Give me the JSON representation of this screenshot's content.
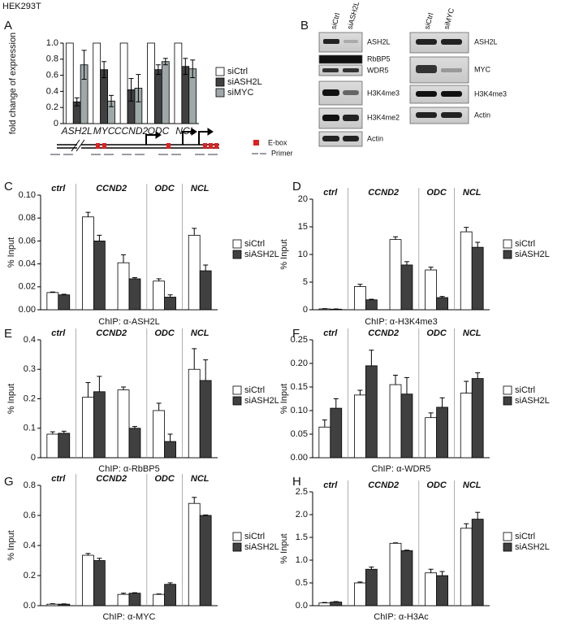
{
  "header": {
    "cell_line": "HEK293T"
  },
  "panel_labels": [
    "A",
    "B",
    "C",
    "D",
    "E",
    "F",
    "G",
    "H"
  ],
  "blots": {
    "left": {
      "lanes": [
        "siCtrl",
        "siASH2L"
      ],
      "bands": [
        "ASH2L",
        "RbBP5",
        "WDR5",
        "H3K4me3",
        "H3K4me2",
        "Actin"
      ]
    },
    "right": {
      "lanes": [
        "siCtrl",
        "siMYC"
      ],
      "bands": [
        "ASH2L",
        "MYC",
        "H3K4me3",
        "Actin"
      ]
    }
  },
  "diagram": {
    "legend": [
      "E-box",
      "Primer"
    ]
  },
  "chart_data": [
    {
      "type": "bar",
      "ylabel": "fold change of expression",
      "categories": [
        "ASH2L",
        "MYC",
        "CCND2",
        "ODC",
        "NCL"
      ],
      "series": [
        {
          "name": "siCtrl",
          "color": "#ffffff",
          "values": [
            1,
            1,
            1,
            1,
            1
          ]
        },
        {
          "name": "siASH2L",
          "color": "#404040",
          "values": [
            0.27,
            0.67,
            0.42,
            0.67,
            0.71
          ],
          "errors": [
            0.05,
            0.1,
            0.14,
            0.06,
            0.1
          ]
        },
        {
          "name": "siMYC",
          "color": "#9ea8a8",
          "values": [
            0.73,
            0.28,
            0.44,
            0.77,
            0.68
          ],
          "errors": [
            0.18,
            0.07,
            0.17,
            0.04,
            0.11
          ]
        }
      ],
      "error_direction": "both",
      "ylim": [
        0,
        1.0
      ],
      "yticks": [
        0,
        0.2,
        0.4,
        0.6,
        0.8,
        {
          "value": 1.0,
          "label": "1.0"
        }
      ],
      "legend": "right"
    },
    {
      "type": "bar",
      "ylabel": "% Input",
      "xlabel": "ChIP: α-ASH2L",
      "categories": [
        "ctrl",
        "CCND2",
        null,
        "ODC",
        "NCL"
      ],
      "series": [
        {
          "name": "siCtrl",
          "color": "#ffffff",
          "values": [
            0.015,
            0.081,
            0.041,
            0.025,
            0.065
          ],
          "errors": [
            0.0005,
            0.004,
            0.007,
            0.002,
            0.006
          ]
        },
        {
          "name": "siASH2L",
          "color": "#404040",
          "values": [
            0.013,
            0.06,
            0.027,
            0.011,
            0.034
          ],
          "errors": [
            0.0005,
            0.005,
            0.001,
            0.002,
            0.005
          ]
        }
      ],
      "error_direction": "up",
      "ylim": [
        0,
        0.1
      ],
      "yticks": [
        {
          "value": 0,
          "label": "0.00"
        },
        0.02,
        0.04,
        0.06,
        0.08,
        {
          "value": 0.1,
          "label": "0.10"
        }
      ],
      "legend": "right"
    },
    {
      "type": "bar",
      "ylabel": "% Input",
      "xlabel": "ChIP: α-H3K4me3",
      "categories": [
        "ctrl",
        "CCND2",
        null,
        "ODC",
        "NCL"
      ],
      "series": [
        {
          "name": "siCtrl",
          "color": "#ffffff",
          "values": [
            0.15,
            4.2,
            12.7,
            7.2,
            14.1
          ],
          "errors": [
            0.05,
            0.4,
            0.5,
            0.5,
            0.8
          ]
        },
        {
          "name": "siASH2L",
          "color": "#404040",
          "values": [
            0.1,
            1.8,
            8.1,
            2.2,
            11.3
          ],
          "errors": [
            0.05,
            0.1,
            0.6,
            0.2,
            0.9
          ]
        }
      ],
      "error_direction": "up",
      "ylim": [
        0,
        20
      ],
      "yticks": [
        0,
        5,
        10,
        15,
        20
      ],
      "legend": "right"
    },
    {
      "type": "bar",
      "ylabel": "% Input",
      "xlabel": "ChIP: α-RbBP5",
      "categories": [
        "ctrl",
        "CCND2",
        null,
        "ODC",
        "NCL"
      ],
      "series": [
        {
          "name": "siCtrl",
          "color": "#ffffff",
          "values": [
            0.08,
            0.205,
            0.23,
            0.16,
            0.3
          ],
          "errors": [
            0.008,
            0.05,
            0.01,
            0.025,
            0.07
          ]
        },
        {
          "name": "siASH2L",
          "color": "#404040",
          "values": [
            0.083,
            0.224,
            0.1,
            0.055,
            0.262
          ],
          "errors": [
            0.007,
            0.052,
            0.006,
            0.025,
            0.07
          ]
        }
      ],
      "error_direction": "up",
      "ylim": [
        0,
        0.4
      ],
      "yticks": [
        0,
        0.1,
        0.2,
        0.3,
        0.4
      ],
      "legend": "right"
    },
    {
      "type": "bar",
      "ylabel": "% Input",
      "xlabel": "ChIP: α-WDR5",
      "categories": [
        "ctrl",
        "CCND2",
        null,
        "ODC",
        "NCL"
      ],
      "series": [
        {
          "name": "siCtrl",
          "color": "#ffffff",
          "values": [
            0.065,
            0.133,
            0.155,
            0.085,
            0.137
          ],
          "errors": [
            0.015,
            0.01,
            0.02,
            0.01,
            0.025
          ]
        },
        {
          "name": "siASH2L",
          "color": "#404040",
          "values": [
            0.105,
            0.195,
            0.135,
            0.107,
            0.168
          ],
          "errors": [
            0.02,
            0.033,
            0.035,
            0.02,
            0.012
          ]
        }
      ],
      "error_direction": "up",
      "ylim": [
        0,
        0.25
      ],
      "yticks": [
        {
          "value": 0,
          "label": "0.00"
        },
        0.05,
        {
          "value": 0.1,
          "label": "0.10"
        },
        0.15,
        {
          "value": 0.2,
          "label": "0.20"
        },
        0.25
      ],
      "legend": "right"
    },
    {
      "type": "bar",
      "ylabel": "% Input",
      "xlabel": "ChIP: α-MYC",
      "categories": [
        "ctrl",
        "CCND2",
        null,
        "ODC",
        "NCL"
      ],
      "series": [
        {
          "name": "siCtrl",
          "color": "#ffffff",
          "values": [
            0.01,
            0.335,
            0.075,
            0.075,
            0.68
          ],
          "errors": [
            0.003,
            0.012,
            0.008,
            0.003,
            0.04
          ]
        },
        {
          "name": "siASH2L",
          "color": "#404040",
          "values": [
            0.01,
            0.3,
            0.083,
            0.142,
            0.6
          ],
          "errors": [
            0.002,
            0.015,
            0.003,
            0.01,
            0.003
          ]
        }
      ],
      "error_direction": "up",
      "ylim": [
        0,
        0.8
      ],
      "yticks": [
        {
          "value": 0,
          "label": "0.0"
        },
        0.2,
        0.4,
        0.6,
        0.8
      ],
      "legend": "right"
    },
    {
      "type": "bar",
      "ylabel": "% Input",
      "xlabel": "ChIP: α-H3Ac",
      "categories": [
        "ctrl",
        "CCND2",
        null,
        "ODC",
        "NCL"
      ],
      "series": [
        {
          "name": "siCtrl",
          "color": "#ffffff",
          "values": [
            0.06,
            0.5,
            1.37,
            0.72,
            1.7
          ],
          "errors": [
            0.01,
            0.02,
            0.01,
            0.08,
            0.1
          ]
        },
        {
          "name": "siASH2L",
          "color": "#404040",
          "values": [
            0.08,
            0.8,
            1.21,
            0.66,
            1.9
          ],
          "errors": [
            0.01,
            0.05,
            0.01,
            0.09,
            0.15
          ]
        }
      ],
      "error_direction": "up",
      "ylim": [
        0,
        2.5
      ],
      "yticks": [
        {
          "value": 0,
          "label": "0.0"
        },
        0.5,
        {
          "value": 1,
          "label": "1.0"
        },
        1.5,
        {
          "value": 2,
          "label": "2.0"
        },
        2.5
      ],
      "legend": "right"
    }
  ]
}
